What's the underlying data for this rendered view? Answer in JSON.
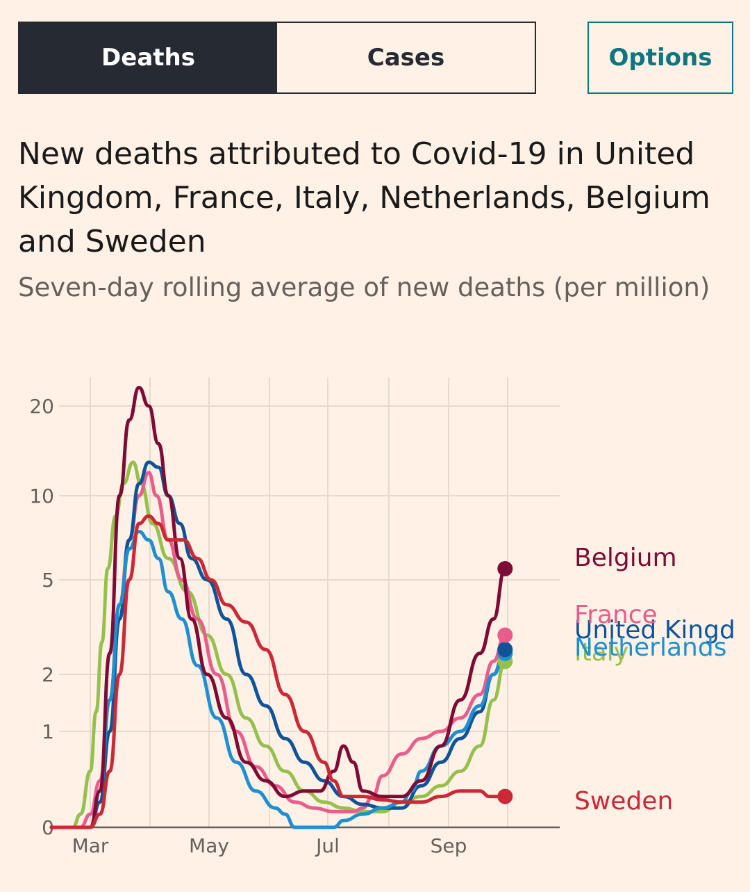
{
  "tabs": {
    "deaths_label": "Deaths",
    "cases_label": "Cases",
    "active": "Deaths"
  },
  "options_label": "Options",
  "title": "New deaths attributed to Covid-19 in United Kingdom, France, Italy, Netherlands, Belgium and Sweden",
  "subtitle": "Seven-day rolling average of new deaths (per million)",
  "chart_data": {
    "type": "line",
    "y_scale": "symlog",
    "y_ticks": [
      0,
      1,
      2,
      5,
      10,
      20
    ],
    "x_tick_labels": [
      "Mar",
      "May",
      "Jul",
      "Sep"
    ],
    "grid": true,
    "label_placement": "line-end",
    "series": [
      {
        "name": "Italy",
        "color": "#96c04e",
        "points": [
          [
            -20,
            0
          ],
          [
            -9,
            0
          ],
          [
            -5,
            0.1
          ],
          [
            0,
            0.5
          ],
          [
            3,
            1.3
          ],
          [
            6,
            2.8
          ],
          [
            9,
            5.5
          ],
          [
            13,
            8.5
          ],
          [
            17,
            11
          ],
          [
            22,
            13
          ],
          [
            26,
            11
          ],
          [
            32,
            8
          ],
          [
            40,
            6
          ],
          [
            50,
            4.5
          ],
          [
            60,
            3
          ],
          [
            70,
            2
          ],
          [
            80,
            1.2
          ],
          [
            90,
            0.8
          ],
          [
            100,
            0.5
          ],
          [
            110,
            0.3
          ],
          [
            120,
            0.2
          ],
          [
            130,
            0.15
          ],
          [
            140,
            0.12
          ],
          [
            150,
            0.12
          ],
          [
            160,
            0.2
          ],
          [
            170,
            0.25
          ],
          [
            180,
            0.35
          ],
          [
            190,
            0.5
          ],
          [
            200,
            0.8
          ],
          [
            207,
            1.5
          ],
          [
            213,
            2.3
          ]
        ]
      },
      {
        "name": "France",
        "color": "#e95d8c",
        "points": [
          [
            -20,
            0
          ],
          [
            -5,
            0
          ],
          [
            0,
            0.1
          ],
          [
            5,
            0.4
          ],
          [
            10,
            1.5
          ],
          [
            15,
            4
          ],
          [
            20,
            7
          ],
          [
            25,
            10
          ],
          [
            30,
            12
          ],
          [
            34,
            10
          ],
          [
            40,
            7
          ],
          [
            47,
            5
          ],
          [
            55,
            3.5
          ],
          [
            65,
            2
          ],
          [
            75,
            1
          ],
          [
            85,
            0.55
          ],
          [
            95,
            0.35
          ],
          [
            105,
            0.2
          ],
          [
            115,
            0.15
          ],
          [
            125,
            0.12
          ],
          [
            135,
            0.12
          ],
          [
            140,
            0.15
          ],
          [
            145,
            0.25
          ],
          [
            150,
            0.45
          ],
          [
            160,
            0.7
          ],
          [
            170,
            0.9
          ],
          [
            180,
            1
          ],
          [
            190,
            1.2
          ],
          [
            200,
            1.6
          ],
          [
            207,
            2.3
          ],
          [
            213,
            3
          ]
        ]
      },
      {
        "name": "United Kingdom",
        "color": "#0f5499",
        "points": [
          [
            -20,
            0
          ],
          [
            -5,
            0
          ],
          [
            0,
            0
          ],
          [
            5,
            0.2
          ],
          [
            10,
            1
          ],
          [
            15,
            3.5
          ],
          [
            20,
            7
          ],
          [
            25,
            11
          ],
          [
            30,
            13
          ],
          [
            35,
            12.5
          ],
          [
            40,
            10
          ],
          [
            46,
            8
          ],
          [
            52,
            6
          ],
          [
            60,
            5
          ],
          [
            70,
            3.5
          ],
          [
            80,
            2
          ],
          [
            90,
            1.4
          ],
          [
            100,
            0.9
          ],
          [
            110,
            0.6
          ],
          [
            120,
            0.4
          ],
          [
            130,
            0.25
          ],
          [
            140,
            0.18
          ],
          [
            150,
            0.15
          ],
          [
            160,
            0.15
          ],
          [
            170,
            0.35
          ],
          [
            180,
            0.6
          ],
          [
            190,
            0.9
          ],
          [
            200,
            1.3
          ],
          [
            207,
            2
          ],
          [
            213,
            2.6
          ]
        ]
      },
      {
        "name": "Netherlands",
        "color": "#1e8fd0",
        "points": [
          [
            -20,
            0
          ],
          [
            -5,
            0
          ],
          [
            0,
            0
          ],
          [
            5,
            0.3
          ],
          [
            10,
            1.5
          ],
          [
            15,
            4
          ],
          [
            20,
            6.5
          ],
          [
            25,
            7.5
          ],
          [
            30,
            7
          ],
          [
            35,
            6
          ],
          [
            40,
            4.5
          ],
          [
            47,
            3.5
          ],
          [
            55,
            2.2
          ],
          [
            65,
            1.2
          ],
          [
            75,
            0.6
          ],
          [
            85,
            0.3
          ],
          [
            95,
            0.15
          ],
          [
            100,
            0.1
          ],
          [
            105,
            0
          ],
          [
            115,
            0
          ],
          [
            125,
            0
          ],
          [
            130,
            0.05
          ],
          [
            140,
            0.1
          ],
          [
            150,
            0.15
          ],
          [
            160,
            0.2
          ],
          [
            165,
            0.3
          ],
          [
            170,
            0.5
          ],
          [
            180,
            0.8
          ],
          [
            190,
            1
          ],
          [
            200,
            1.4
          ],
          [
            207,
            2
          ],
          [
            213,
            2.5
          ]
        ]
      },
      {
        "name": "Belgium",
        "color": "#7d0b36",
        "points": [
          [
            -20,
            0
          ],
          [
            -5,
            0
          ],
          [
            0,
            0
          ],
          [
            5,
            0.3
          ],
          [
            10,
            2.5
          ],
          [
            15,
            10
          ],
          [
            20,
            18
          ],
          [
            25,
            23
          ],
          [
            30,
            20
          ],
          [
            35,
            15
          ],
          [
            40,
            10
          ],
          [
            46,
            6
          ],
          [
            52,
            3.5
          ],
          [
            60,
            2
          ],
          [
            70,
            1.2
          ],
          [
            80,
            0.6
          ],
          [
            90,
            0.4
          ],
          [
            100,
            0.25
          ],
          [
            110,
            0.3
          ],
          [
            118,
            0.3
          ],
          [
            125,
            0.5
          ],
          [
            130,
            0.8
          ],
          [
            135,
            0.6
          ],
          [
            140,
            0.3
          ],
          [
            150,
            0.25
          ],
          [
            160,
            0.25
          ],
          [
            170,
            0.4
          ],
          [
            180,
            0.8
          ],
          [
            190,
            1.5
          ],
          [
            200,
            2.5
          ],
          [
            207,
            3.5
          ],
          [
            213,
            5.5
          ]
        ]
      },
      {
        "name": "Sweden",
        "color": "#cc2836",
        "points": [
          [
            -20,
            0
          ],
          [
            -5,
            0
          ],
          [
            0,
            0
          ],
          [
            5,
            0.1
          ],
          [
            10,
            0.5
          ],
          [
            15,
            2
          ],
          [
            20,
            5
          ],
          [
            25,
            8
          ],
          [
            30,
            8.5
          ],
          [
            35,
            8
          ],
          [
            40,
            7
          ],
          [
            48,
            7
          ],
          [
            55,
            6
          ],
          [
            62,
            5
          ],
          [
            70,
            4
          ],
          [
            80,
            3.4
          ],
          [
            90,
            2.6
          ],
          [
            100,
            1.6
          ],
          [
            110,
            1
          ],
          [
            120,
            0.6
          ],
          [
            125,
            0.4
          ],
          [
            130,
            0.25
          ],
          [
            140,
            0.25
          ],
          [
            150,
            0.22
          ],
          [
            160,
            0.2
          ],
          [
            170,
            0.2
          ],
          [
            180,
            0.25
          ],
          [
            190,
            0.3
          ],
          [
            200,
            0.3
          ],
          [
            205,
            0.25
          ],
          [
            210,
            0.25
          ],
          [
            213,
            0.25
          ]
        ]
      }
    ],
    "end_labels": [
      {
        "name": "Belgium",
        "text": "Belgium",
        "color": "#7d0b36"
      },
      {
        "name": "France",
        "text": "France",
        "color": "#e95d8c"
      },
      {
        "name": "United Kingdom",
        "text": "United Kingdom",
        "color": "#0f5499"
      },
      {
        "name": "Italy",
        "text": "Italy",
        "color": "#96c04e"
      },
      {
        "name": "Netherlands",
        "text": "Netherlands",
        "color": "#1e8fd0"
      },
      {
        "name": "Sweden",
        "text": "Sweden",
        "color": "#cc2836"
      }
    ]
  }
}
